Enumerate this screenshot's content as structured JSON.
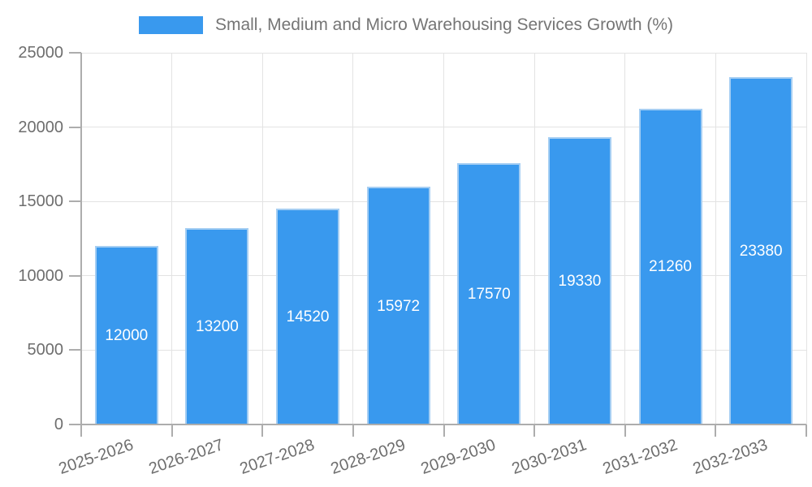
{
  "chart_data": {
    "type": "bar",
    "title": "Small, Medium and Micro Warehousing Services Growth (%)",
    "categories": [
      "2025-2026",
      "2026-2027",
      "2027-2028",
      "2028-2029",
      "2029-2030",
      "2030-2031",
      "2031-2032",
      "2032-2033"
    ],
    "values": [
      12000,
      13200,
      14520,
      15972,
      17570,
      19330,
      21260,
      23380
    ],
    "xlabel": "",
    "ylabel": "",
    "ylim": [
      0,
      25000
    ],
    "yticks": [
      0,
      5000,
      10000,
      15000,
      20000,
      25000
    ],
    "grid": true,
    "legend_position": "top-center",
    "series_name": "Small, Medium and Micro Warehousing Services Growth (%)",
    "value_labels_shown": true
  },
  "colors": {
    "bar_fill": "#3999EE",
    "bar_border": "#A5CEF3",
    "gridline": "#E3E3E3",
    "axis_line": "#ADADAD",
    "axis_text": "#6E6E6E",
    "legend_text": "#757575",
    "value_label": "#FFFFFF",
    "background": "#FFFFFF"
  }
}
